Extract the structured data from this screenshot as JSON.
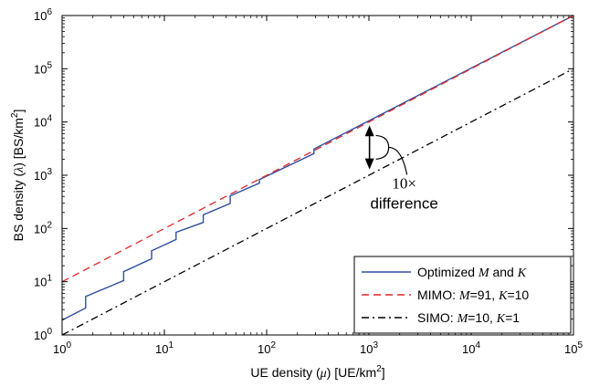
{
  "chart_data": {
    "type": "line",
    "xlabel": {
      "pre": "UE density (",
      "sym": "μ",
      "post": ") [UE/km",
      "sup": "2",
      "end": "]"
    },
    "ylabel": {
      "pre": "BS density (",
      "sym": "λ",
      "post": ") [BS/km",
      "sup": "2",
      "end": "]"
    },
    "xscale": "log",
    "yscale": "log",
    "xlim": [
      1,
      100000
    ],
    "ylim": [
      1,
      1000000
    ],
    "xticks": [
      {
        "base": "10",
        "exp": "0",
        "value": 1
      },
      {
        "base": "10",
        "exp": "1",
        "value": 10
      },
      {
        "base": "10",
        "exp": "2",
        "value": 100
      },
      {
        "base": "10",
        "exp": "3",
        "value": 1000
      },
      {
        "base": "10",
        "exp": "4",
        "value": 10000
      },
      {
        "base": "10",
        "exp": "5",
        "value": 100000
      }
    ],
    "yticks": [
      {
        "base": "10",
        "exp": "0",
        "value": 1
      },
      {
        "base": "10",
        "exp": "1",
        "value": 10
      },
      {
        "base": "10",
        "exp": "2",
        "value": 100
      },
      {
        "base": "10",
        "exp": "3",
        "value": 1000
      },
      {
        "base": "10",
        "exp": "4",
        "value": 10000
      },
      {
        "base": "10",
        "exp": "5",
        "value": 100000
      },
      {
        "base": "10",
        "exp": "6",
        "value": 1000000
      }
    ],
    "grid": false,
    "legend_position": "bottom-right",
    "series": [
      {
        "name_parts": [
          {
            "t": "Optimized ",
            "m": false
          },
          {
            "t": "M",
            "m": true
          },
          {
            "t": " and ",
            "m": false
          },
          {
            "t": "K",
            "m": true
          }
        ],
        "color": "#2f4f9e",
        "dash": "solid",
        "x": [
          1,
          1.7,
          1.7,
          4,
          4,
          7.5,
          7.5,
          13,
          13,
          24,
          24,
          44,
          44,
          85,
          85,
          290,
          290,
          100000
        ],
        "y": [
          1.9,
          3.2,
          5.3,
          10.5,
          15.5,
          27,
          38,
          62,
          85,
          130,
          180,
          295,
          410,
          710,
          830,
          2550,
          3100,
          1000000
        ]
      },
      {
        "name_parts": [
          {
            "t": "MIMO: ",
            "m": false
          },
          {
            "t": "M",
            "m": true
          },
          {
            "t": "=91, ",
            "m": false
          },
          {
            "t": "K",
            "m": true
          },
          {
            "t": "=10",
            "m": false
          }
        ],
        "color": "#e5262b",
        "dash": "dashed",
        "x": [
          1,
          100000
        ],
        "y": [
          10,
          1000000
        ]
      },
      {
        "name_parts": [
          {
            "t": "SIMO: ",
            "m": false
          },
          {
            "t": "M",
            "m": true
          },
          {
            "t": "=10, ",
            "m": false
          },
          {
            "t": "K",
            "m": true
          },
          {
            "t": "=1",
            "m": false
          }
        ],
        "color": "#000000",
        "dash": "dashdot",
        "x": [
          1,
          100000
        ],
        "y": [
          1,
          100000
        ]
      }
    ],
    "annotation": {
      "line1": "10×",
      "line2": "difference",
      "arrow_x": 1100,
      "arrow_y_top": 11000,
      "arrow_y_bottom": 1100
    }
  }
}
